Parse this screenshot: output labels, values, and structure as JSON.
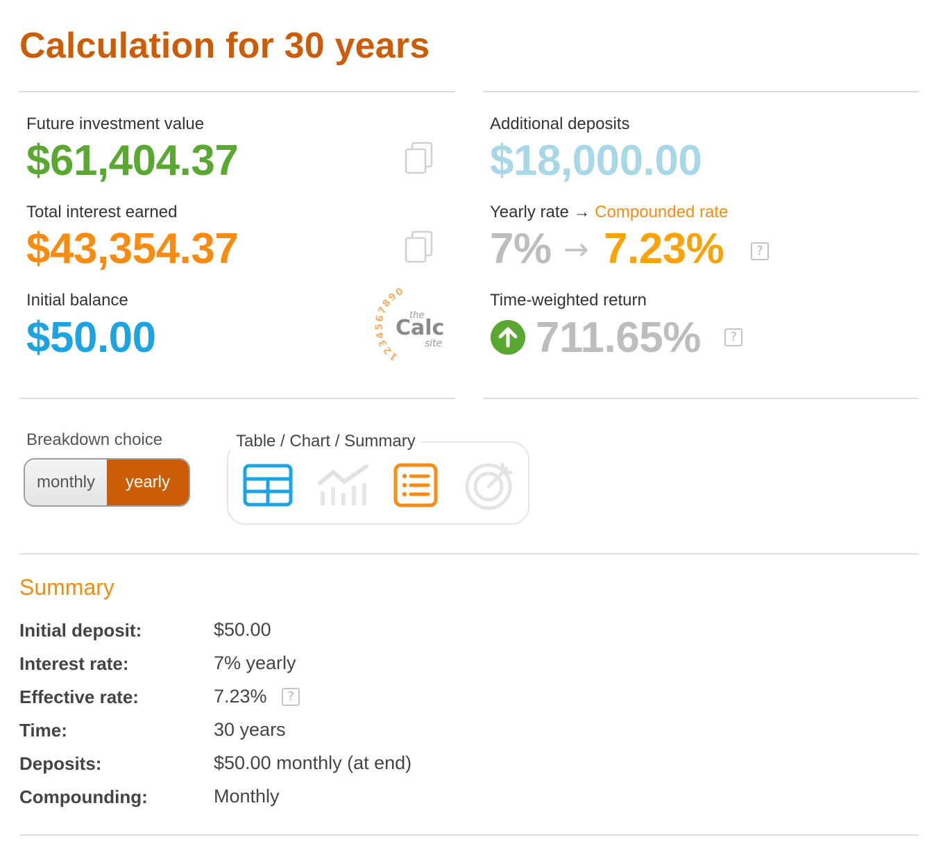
{
  "page": {
    "title": "Calculation for 30 years"
  },
  "results": {
    "future_value": {
      "label": "Future investment value",
      "value": "$61,404.37",
      "color": "#5aa832"
    },
    "total_interest": {
      "label": "Total interest earned",
      "value": "$43,354.37",
      "color": "#f98b12"
    },
    "initial_balance": {
      "label": "Initial balance",
      "value": "$50.00",
      "color": "#1ea3e2"
    },
    "additional_deposits": {
      "label": "Additional deposits",
      "value": "$18,000.00",
      "color": "#a8d8e8"
    },
    "rate": {
      "label_prefix": "Yearly rate",
      "arrow": "→",
      "label_suffix": "Compounded rate",
      "yearly": "7%",
      "arrow_big": "→",
      "compounded": "7.23%",
      "help": "?"
    },
    "twr": {
      "label": "Time-weighted return",
      "value": "711.65%",
      "help": "?",
      "icon": "arrow-up-circle-icon"
    }
  },
  "logo": {
    "digits": "1234567890",
    "the": "the",
    "calc": "Calc",
    "site": "site"
  },
  "breakdown": {
    "label": "Breakdown choice",
    "options": [
      "monthly",
      "yearly"
    ],
    "selected": "yearly"
  },
  "views": {
    "legend": "Table / Chart / Summary",
    "icons": [
      "table-icon",
      "chart-icon",
      "summary-list-icon",
      "target-icon"
    ],
    "active": "summary-list-icon"
  },
  "summary": {
    "title": "Summary",
    "rows": [
      {
        "key": "Initial deposit:",
        "value": "$50.00"
      },
      {
        "key": "Interest rate:",
        "value": "7% yearly"
      },
      {
        "key": "Effective rate:",
        "value": "7.23%"
      },
      {
        "key": "Time:",
        "value": "30 years"
      },
      {
        "key": "Deposits:",
        "value": "$50.00 monthly (at end)"
      },
      {
        "key": "Compounding:",
        "value": "Monthly"
      }
    ],
    "effective_help": "?"
  }
}
